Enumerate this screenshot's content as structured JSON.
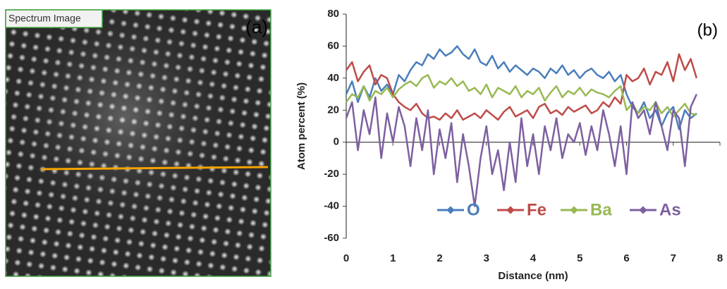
{
  "panel_a": {
    "label": "Spectrum Image",
    "tag": "(a)"
  },
  "chart_data": {
    "type": "line",
    "annotation": "(b)",
    "x_label": "Distance (nm)",
    "y_label": "Atom percent (%)",
    "xlim": [
      0,
      8
    ],
    "xticks": [
      0,
      1,
      2,
      3,
      4,
      5,
      6,
      7,
      8
    ],
    "ylim": [
      -60,
      80
    ],
    "yticks": [
      -60,
      -40,
      -20,
      0,
      20,
      40,
      60,
      80
    ],
    "grid": false,
    "legend": "bottom",
    "x": [
      0,
      0.125,
      0.25,
      0.375,
      0.5,
      0.625,
      0.75,
      0.875,
      1,
      1.125,
      1.25,
      1.375,
      1.5,
      1.625,
      1.75,
      1.875,
      2,
      2.125,
      2.25,
      2.375,
      2.5,
      2.625,
      2.75,
      2.875,
      3,
      3.125,
      3.25,
      3.375,
      3.5,
      3.625,
      3.75,
      3.875,
      4,
      4.125,
      4.25,
      4.375,
      4.5,
      4.625,
      4.75,
      4.875,
      5,
      5.125,
      5.25,
      5.375,
      5.5,
      5.625,
      5.75,
      5.875,
      6,
      6.125,
      6.25,
      6.375,
      6.5,
      6.625,
      6.75,
      6.875,
      7,
      7.125,
      7.25,
      7.375,
      7.5
    ],
    "series": [
      {
        "name": "O",
        "color": "#4a7ebb",
        "values": [
          30,
          38,
          25,
          35,
          28,
          40,
          32,
          36,
          30,
          42,
          38,
          45,
          50,
          48,
          55,
          52,
          58,
          54,
          56,
          60,
          55,
          52,
          58,
          50,
          48,
          54,
          46,
          50,
          44,
          48,
          45,
          42,
          46,
          44,
          40,
          46,
          43,
          48,
          42,
          45,
          40,
          44,
          46,
          42,
          40,
          44,
          38,
          42,
          30,
          22,
          18,
          25,
          15,
          20,
          10,
          18,
          22,
          8,
          20,
          15,
          18
        ]
      },
      {
        "name": "Fe",
        "color": "#be4b48",
        "values": [
          45,
          50,
          38,
          44,
          48,
          36,
          42,
          40,
          30,
          25,
          22,
          20,
          24,
          18,
          15,
          16,
          14,
          18,
          15,
          20,
          14,
          16,
          18,
          15,
          20,
          17,
          14,
          19,
          22,
          16,
          18,
          20,
          15,
          22,
          24,
          18,
          20,
          17,
          22,
          19,
          21,
          23,
          18,
          20,
          25,
          22,
          28,
          24,
          42,
          38,
          40,
          46,
          36,
          44,
          42,
          50,
          38,
          55,
          45,
          52,
          40
        ]
      },
      {
        "name": "Ba",
        "color": "#98b954",
        "values": [
          25,
          30,
          28,
          35,
          26,
          32,
          30,
          34,
          28,
          33,
          36,
          38,
          35,
          40,
          42,
          34,
          38,
          36,
          40,
          35,
          38,
          32,
          34,
          30,
          36,
          28,
          34,
          32,
          30,
          35,
          28,
          32,
          30,
          34,
          26,
          31,
          35,
          28,
          32,
          30,
          34,
          29,
          33,
          31,
          30,
          28,
          32,
          35,
          20,
          24,
          18,
          22,
          20,
          25,
          18,
          22,
          16,
          20,
          24,
          18,
          17
        ]
      },
      {
        "name": "As",
        "color": "#7d60a0",
        "values": [
          15,
          25,
          -5,
          20,
          5,
          28,
          -10,
          18,
          0,
          22,
          10,
          -15,
          15,
          -5,
          20,
          -20,
          8,
          -10,
          12,
          -25,
          5,
          -15,
          -40,
          -10,
          10,
          -20,
          -5,
          -30,
          0,
          -25,
          15,
          -15,
          5,
          -20,
          10,
          -5,
          15,
          -10,
          5,
          0,
          12,
          -8,
          10,
          -5,
          20,
          5,
          -15,
          10,
          -20,
          25,
          15,
          20,
          5,
          25,
          10,
          -5,
          20,
          15,
          -15,
          22,
          30
        ]
      }
    ]
  }
}
